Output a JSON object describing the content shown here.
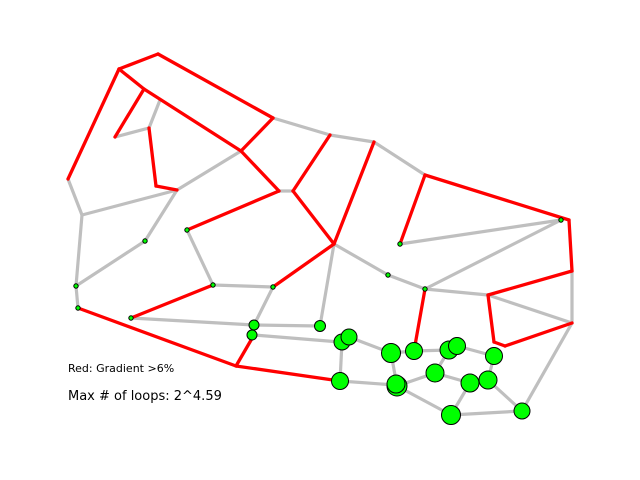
{
  "legend": "Red: Gradient >6%",
  "loops_label": "Max # of loops: 2^4.59",
  "colors": {
    "background": "#ffffff",
    "steep_edge": "#ff0000",
    "flat_edge": "#bfbfbf",
    "node_fill": "#00ff00",
    "node_stroke": "#000000"
  }
}
